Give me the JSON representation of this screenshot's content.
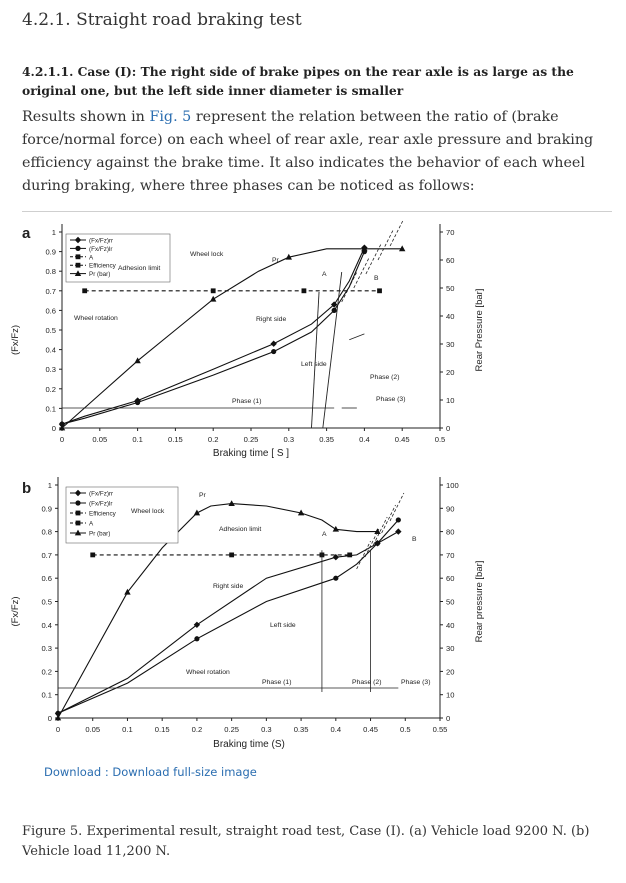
{
  "section_title": "4.2.1. Straight road braking test",
  "subsection_title": "4.2.1.1. Case (I): The right side of brake pipes on the rear axle is as large as the original one, but the left side inner diameter is smaller",
  "paragraph": {
    "before_link": "Results shown in ",
    "link": "Fig. 5",
    "after_link": " represent the relation between the ratio of (brake force/normal force) on each wheel of rear axle, rear axle pressure and braking efficiency against the brake time. It also indicates the behavior of each wheel during braking, where three phases can be noticed as follows:"
  },
  "download": {
    "prefix": "Download : ",
    "link": "Download full-size image"
  },
  "caption": "Figure 5. Experimental result, straight road test, Case (I). (a) Vehicle load 9200 N. (b) Vehicle load 11,200 N.",
  "chart_data": [
    {
      "type": "line",
      "panel_label": "a",
      "xlabel": "Braking time [ S ]",
      "ylabel": "(Fx/Fz)",
      "y2label": "Rear Pressure [bar]",
      "xlim": [
        0,
        0.5
      ],
      "ylim": [
        0,
        1
      ],
      "y2lim": [
        0,
        70
      ],
      "x_ticks": [
        0,
        0.05,
        0.1,
        0.15,
        0.2,
        0.25,
        0.3,
        0.35,
        0.4,
        0.45,
        0.5
      ],
      "x_tick_labels": [
        "0",
        "0.05",
        "0.1",
        "0.15",
        "0.2",
        "0.25",
        "0.3",
        "0.35",
        "0.4",
        "0.45",
        "0.5"
      ],
      "y_ticks": [
        0,
        0.1,
        0.2,
        0.3,
        0.4,
        0.5,
        0.6,
        0.7,
        0.8,
        0.9,
        1
      ],
      "y_tick_labels": [
        "0",
        "0.1",
        "0.2",
        "0.3",
        "0.4",
        "0.5",
        "0.6",
        "0.7",
        "0.8",
        "0.9",
        "1"
      ],
      "y2_ticks": [
        0,
        10,
        20,
        30,
        40,
        50,
        60,
        70
      ],
      "y2_tick_labels": [
        "0",
        "10",
        "20",
        "30",
        "40",
        "50",
        "60",
        "70"
      ],
      "legend": [
        "(Fx/Fz)rr",
        "(Fx/Fz)lr",
        "A",
        "Efficiency",
        "Pr (bar)"
      ],
      "legend_position": "top-left",
      "series": [
        {
          "name": "(Fx/Fz)rr",
          "marker": "diamond",
          "dash": "",
          "color": "#111111",
          "x": [
            0,
            0.03,
            0.1,
            0.2,
            0.28,
            0.33,
            0.36,
            0.38,
            0.4
          ],
          "y": [
            0.02,
            0.06,
            0.14,
            0.3,
            0.43,
            0.53,
            0.63,
            0.75,
            0.92
          ]
        },
        {
          "name": "(Fx/Fz)lr",
          "marker": "circle",
          "dash": "",
          "color": "#111111",
          "x": [
            0,
            0.03,
            0.1,
            0.2,
            0.28,
            0.33,
            0.36,
            0.38,
            0.4
          ],
          "y": [
            0.02,
            0.05,
            0.13,
            0.27,
            0.39,
            0.49,
            0.6,
            0.72,
            0.9
          ]
        },
        {
          "name": "Efficiency",
          "marker": "square",
          "dash": "4 3",
          "color": "#111111",
          "x": [
            0.03,
            0.1,
            0.2,
            0.26,
            0.32,
            0.37,
            0.42
          ],
          "y": [
            0.7,
            0.7,
            0.7,
            0.7,
            0.7,
            0.7,
            0.7
          ]
        },
        {
          "name": "Pr (bar)",
          "marker": "triangle",
          "dash": "",
          "color": "#111111",
          "axis": "y2",
          "x": [
            0,
            0.05,
            0.1,
            0.15,
            0.2,
            0.26,
            0.3,
            0.35,
            0.4,
            0.45
          ],
          "y": [
            0,
            12,
            24,
            35,
            46,
            56,
            61,
            64,
            64,
            64
          ]
        }
      ],
      "annotations": [
        "Wheel lock",
        "Pr",
        "Adhesion limit",
        "Wheel rotation",
        "Right side",
        "Left side",
        "A",
        "B",
        "Phase (1)",
        "Phase (2)",
        "Phase (3)"
      ]
    },
    {
      "type": "line",
      "panel_label": "b",
      "xlabel": "Braking time (S)",
      "ylabel": "(Fx/Fz)",
      "y2label": "Rear pressure [bar]",
      "xlim": [
        0,
        0.55
      ],
      "ylim": [
        0,
        1
      ],
      "y2lim": [
        0,
        100
      ],
      "x_ticks": [
        0,
        0.05,
        0.1,
        0.15,
        0.2,
        0.25,
        0.3,
        0.35,
        0.4,
        0.45,
        0.5,
        0.55
      ],
      "x_tick_labels": [
        "0",
        "0.05",
        "0.1",
        "0.15",
        "0.2",
        "0.25",
        "0.3",
        "0.35",
        "0.4",
        "0.45",
        "0.5",
        "0.55"
      ],
      "y_ticks": [
        0,
        0.1,
        0.2,
        0.3,
        0.4,
        0.5,
        0.6,
        0.7,
        0.8,
        0.9,
        1
      ],
      "y_tick_labels": [
        "0",
        "0.1",
        "0.2",
        "0.3",
        "0.4",
        "0.5",
        "0.6",
        "0.7",
        "0.8",
        "0.9",
        "1"
      ],
      "y2_ticks": [
        0,
        10,
        20,
        30,
        40,
        50,
        60,
        70,
        80,
        90,
        100
      ],
      "y2_tick_labels": [
        "0",
        "10",
        "20",
        "30",
        "40",
        "50",
        "60",
        "70",
        "80",
        "90",
        "100"
      ],
      "legend": [
        "(Fx/Fz)rr",
        "(Fx/Fz)lr",
        "Efficiency",
        "A",
        "Pr (bar)"
      ],
      "legend_position": "top-left",
      "series": [
        {
          "name": "(Fx/Fz)rr",
          "marker": "diamond",
          "dash": "",
          "color": "#111111",
          "x": [
            0,
            0.1,
            0.2,
            0.3,
            0.4,
            0.43,
            0.46,
            0.49
          ],
          "y": [
            0.02,
            0.17,
            0.4,
            0.6,
            0.69,
            0.7,
            0.75,
            0.8
          ]
        },
        {
          "name": "(Fx/Fz)lr",
          "marker": "circle",
          "dash": "",
          "color": "#111111",
          "x": [
            0,
            0.1,
            0.2,
            0.3,
            0.4,
            0.43,
            0.46,
            0.49
          ],
          "y": [
            0.02,
            0.15,
            0.34,
            0.5,
            0.6,
            0.66,
            0.75,
            0.85
          ]
        },
        {
          "name": "Efficiency",
          "marker": "square",
          "dash": "4 3",
          "color": "#111111",
          "x": [
            0.05,
            0.15,
            0.25,
            0.33,
            0.38,
            0.42
          ],
          "y": [
            0.7,
            0.7,
            0.7,
            0.7,
            0.7,
            0.7
          ]
        },
        {
          "name": "Pr (bar)",
          "marker": "triangle",
          "dash": "",
          "color": "#111111",
          "axis": "y2",
          "x": [
            0,
            0.05,
            0.1,
            0.15,
            0.2,
            0.22,
            0.25,
            0.3,
            0.35,
            0.38,
            0.4,
            0.43,
            0.46
          ],
          "y": [
            0,
            27,
            54,
            73,
            88,
            91,
            92,
            91,
            88,
            85,
            81,
            80,
            80
          ]
        }
      ],
      "annotations": [
        "Pr",
        "Wheel lock",
        "Adhesion limit",
        "Right side",
        "Left side",
        "Wheel rotation",
        "A",
        "B",
        "Phase (1)",
        "Phase (2)",
        "Phase (3)"
      ]
    }
  ]
}
